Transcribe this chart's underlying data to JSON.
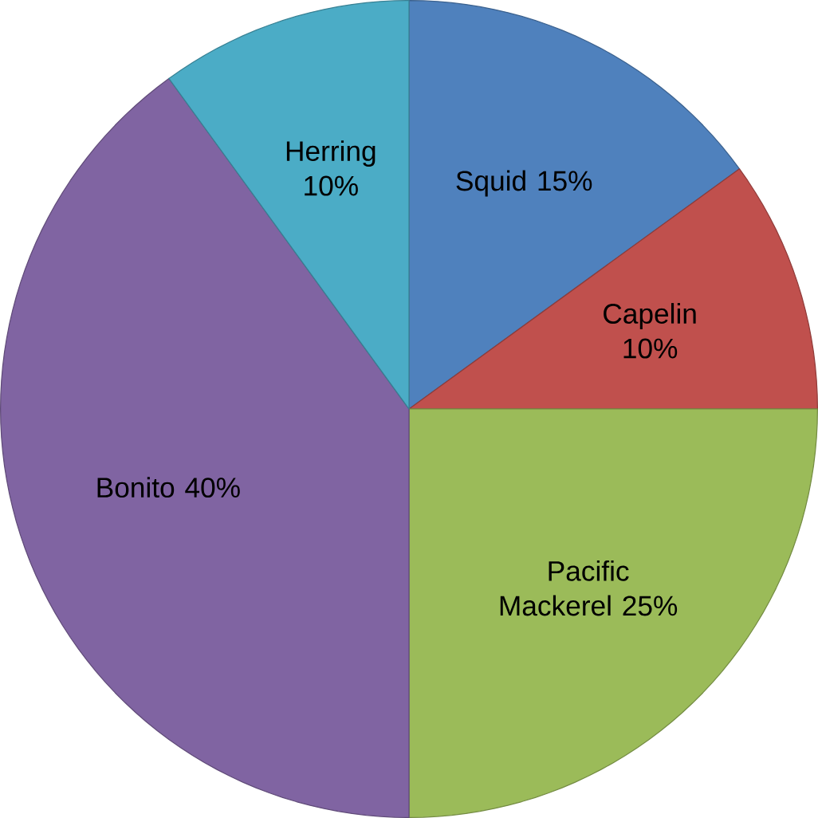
{
  "chart_data": {
    "type": "pie",
    "categories": [
      "Squid",
      "Capelin",
      "Pacific Mackerel",
      "Bonito",
      "Herring"
    ],
    "values": [
      15,
      10,
      25,
      40,
      10
    ],
    "colors": [
      "#4f81bd",
      "#c0504d",
      "#9bbb59",
      "#8064a2",
      "#4bacc6"
    ],
    "value_labels": [
      "15%",
      "10%",
      "25%",
      "40%",
      "10%"
    ]
  }
}
